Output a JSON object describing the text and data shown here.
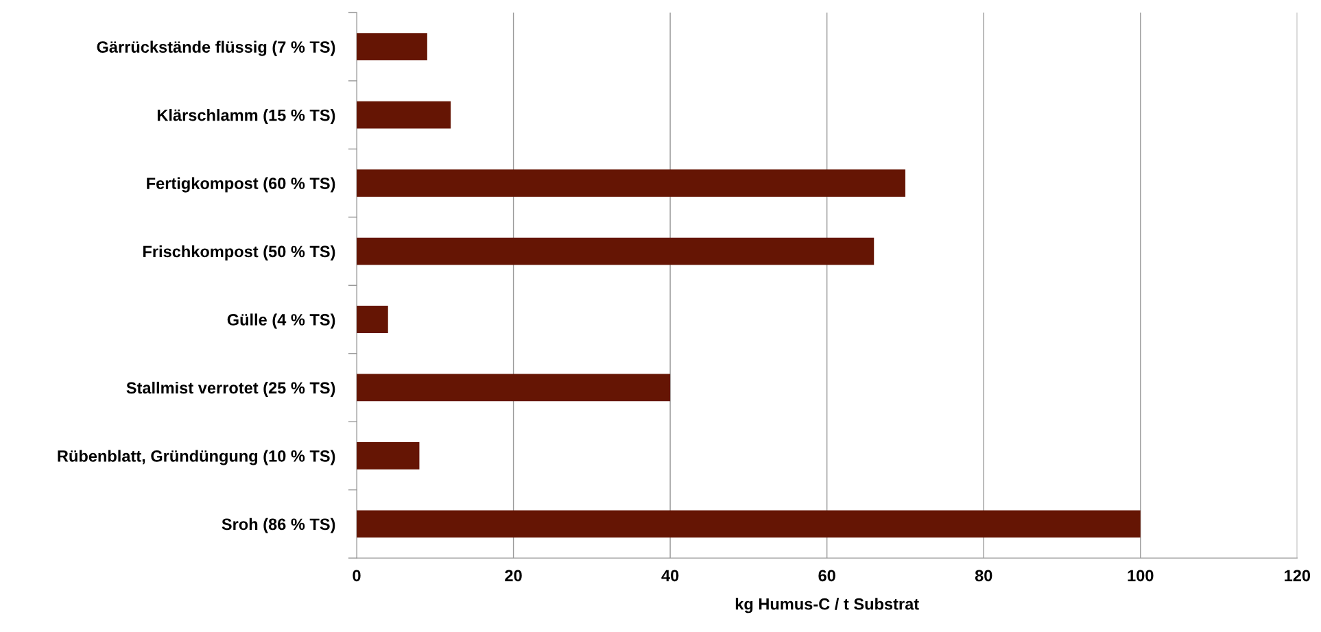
{
  "chart_data": {
    "type": "bar",
    "orientation": "horizontal",
    "xlabel": "kg Humus-C / t Substrat",
    "categories": [
      "Gärrückstände flüssig (7 % TS)",
      "Klärschlamm (15 % TS)",
      "Fertigkompost (60 % TS)",
      "Frischkompost (50 % TS)",
      "Gülle (4 % TS)",
      "Stallmist verrotet (25 % TS)",
      "Rübenblatt, Gründüngung (10 % TS)",
      "Sroh (86 % TS)"
    ],
    "values": [
      9,
      12,
      70,
      66,
      4,
      40,
      8,
      100
    ],
    "color": "#651504",
    "xlim": [
      0,
      120
    ],
    "xticks": [
      0,
      20,
      40,
      60,
      80,
      100,
      120
    ],
    "grid": "x"
  }
}
